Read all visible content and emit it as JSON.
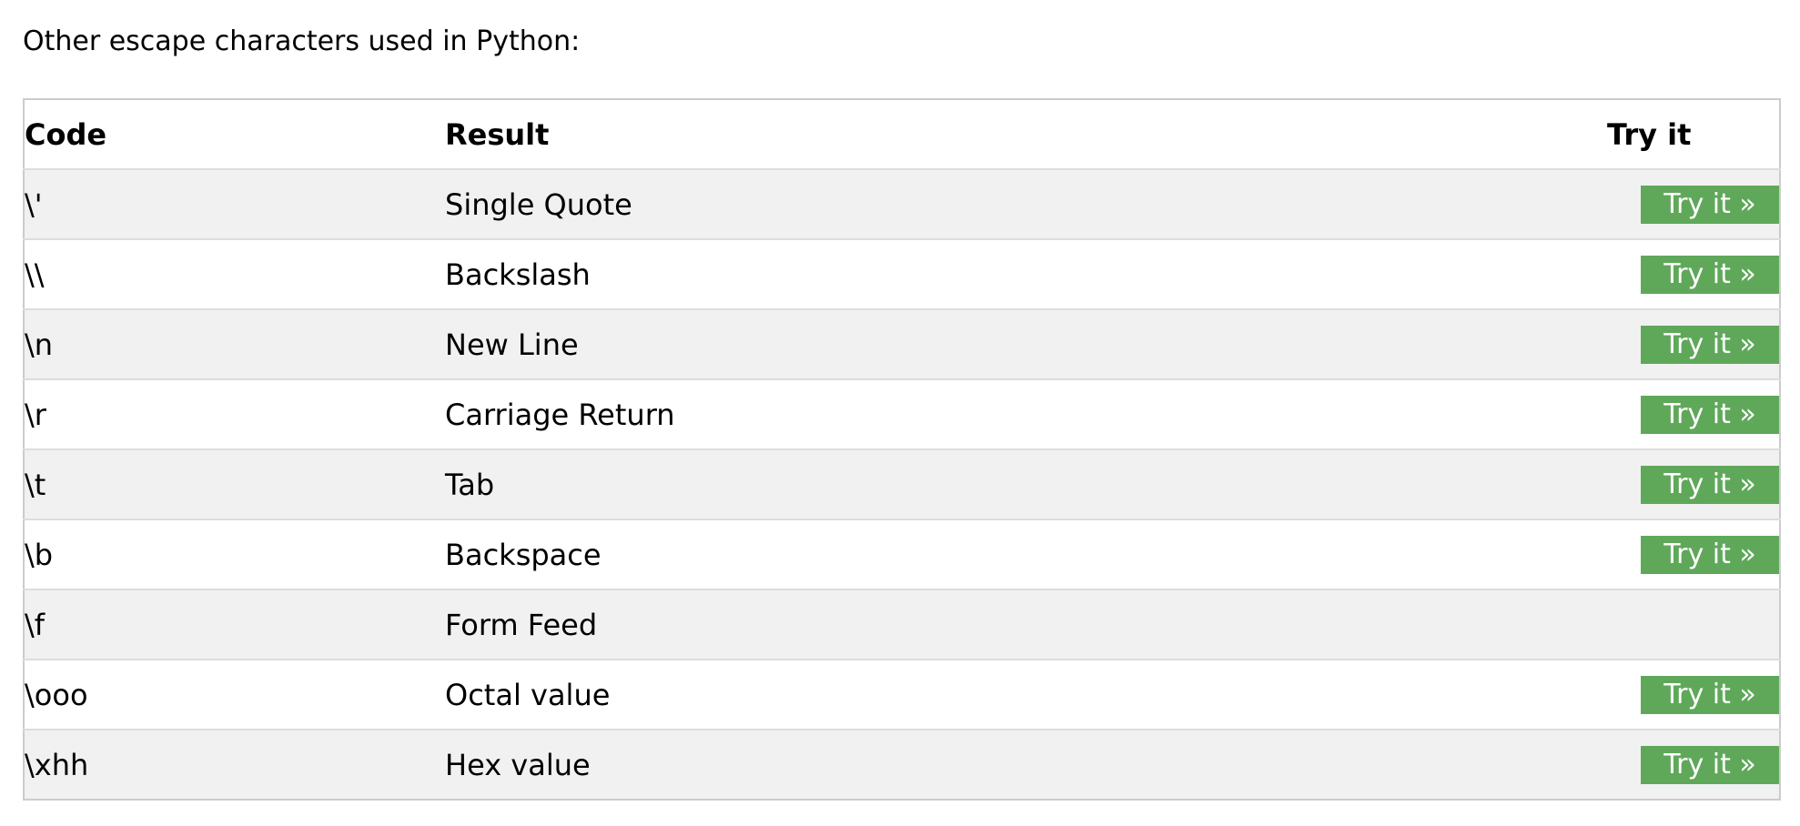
{
  "intro_text": "Other escape characters used in Python:",
  "table": {
    "headers": {
      "code": "Code",
      "result": "Result",
      "try": "Try it"
    },
    "rows": [
      {
        "code": "\\'",
        "result": "Single Quote",
        "button": "Try it »"
      },
      {
        "code": "\\\\",
        "result": "Backslash",
        "button": "Try it »"
      },
      {
        "code": "\\n",
        "result": "New Line",
        "button": "Try it »"
      },
      {
        "code": "\\r",
        "result": "Carriage Return",
        "button": "Try it »"
      },
      {
        "code": "\\t",
        "result": "Tab",
        "button": "Try it »"
      },
      {
        "code": "\\b",
        "result": "Backspace",
        "button": "Try it »"
      },
      {
        "code": "\\f",
        "result": "Form Feed"
      },
      {
        "code": "\\ooo",
        "result": "Octal value",
        "button": "Try it »"
      },
      {
        "code": "\\xhh",
        "result": "Hex value",
        "button": "Try it »"
      }
    ]
  },
  "colors": {
    "button_bg": "#5fa85a",
    "button_text": "#ffffff",
    "row_alt_bg": "#f1f1f1",
    "border": "#cccccc"
  }
}
